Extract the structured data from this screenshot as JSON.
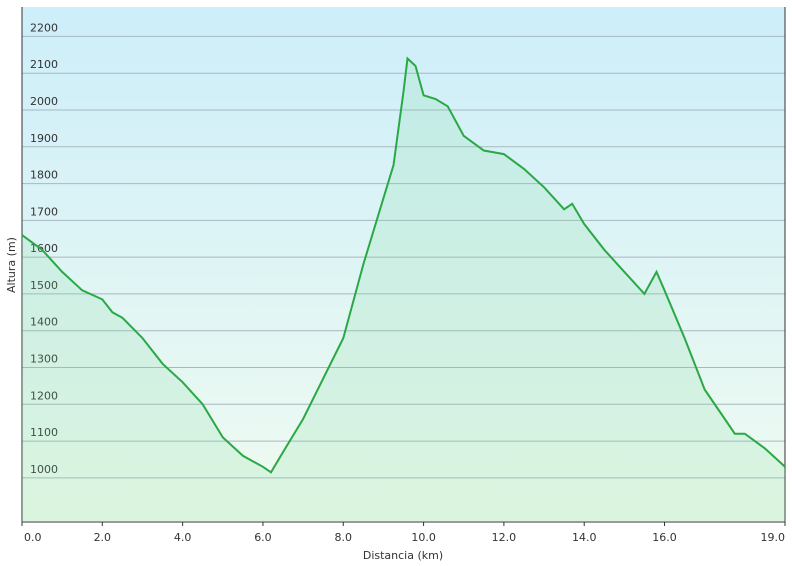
{
  "chart_data": {
    "type": "line",
    "xlabel": "Distancia  (km)",
    "ylabel": "Altura (m)",
    "x": [
      0.0,
      0.5,
      1.0,
      1.5,
      2.0,
      2.25,
      2.5,
      3.0,
      3.5,
      4.0,
      4.5,
      5.0,
      5.5,
      6.0,
      6.2,
      6.5,
      7.0,
      7.5,
      8.0,
      8.5,
      9.0,
      9.25,
      9.5,
      9.6,
      9.8,
      10.0,
      10.3,
      10.6,
      11.0,
      11.5,
      12.0,
      12.5,
      13.0,
      13.5,
      13.7,
      14.0,
      14.5,
      15.0,
      15.5,
      15.8,
      16.0,
      16.5,
      17.0,
      17.5,
      17.75,
      18.0,
      18.5,
      19.0
    ],
    "series": [
      {
        "name": "Altura",
        "color": "#2aa845",
        "values": [
          1660,
          1620,
          1560,
          1510,
          1485,
          1450,
          1435,
          1380,
          1310,
          1260,
          1200,
          1110,
          1060,
          1030,
          1015,
          1070,
          1160,
          1270,
          1380,
          1580,
          1760,
          1850,
          2050,
          2140,
          2120,
          2040,
          2030,
          2010,
          1930,
          1890,
          1880,
          1840,
          1790,
          1730,
          1745,
          1690,
          1620,
          1560,
          1500,
          1560,
          1510,
          1380,
          1240,
          1160,
          1120,
          1120,
          1080,
          1030
        ]
      }
    ],
    "xlim": [
      0,
      19
    ],
    "xticks": [
      {
        "value": 0,
        "label": "0.0"
      },
      {
        "value": 2,
        "label": "2.0"
      },
      {
        "value": 4,
        "label": "4.0"
      },
      {
        "value": 6,
        "label": "6.0"
      },
      {
        "value": 8,
        "label": "8.0"
      },
      {
        "value": 10,
        "label": "10.0"
      },
      {
        "value": 12,
        "label": "12.0"
      },
      {
        "value": 14,
        "label": "14.0"
      },
      {
        "value": 16,
        "label": "16.0"
      },
      {
        "value": 19,
        "label": "19.0"
      }
    ],
    "ylim": [
      880,
      2280
    ],
    "yticks": [
      1000,
      1100,
      1200,
      1300,
      1400,
      1500,
      1600,
      1700,
      1800,
      1900,
      2000,
      2100,
      2200
    ],
    "grid": true
  }
}
